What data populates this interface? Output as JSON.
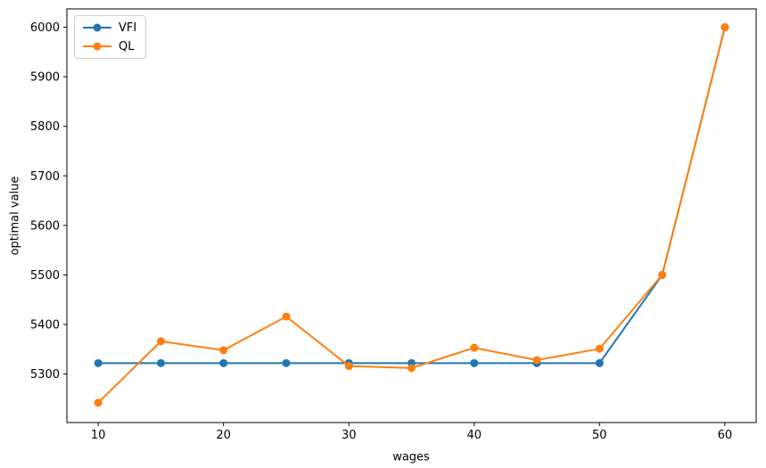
{
  "figure": {
    "background": "#ffffff",
    "spine_color": "#000000",
    "tick_color": "#000000"
  },
  "chart_data": {
    "type": "line",
    "title": "",
    "xlabel": "wages",
    "ylabel": "optimal value",
    "x": [
      10,
      15,
      20,
      25,
      30,
      35,
      40,
      45,
      50,
      55,
      60
    ],
    "series": [
      {
        "name": "VFI",
        "color": "#1f77b4",
        "values": [
          5322,
          5322,
          5322,
          5322,
          5322,
          5322,
          5322,
          5322,
          5322,
          5500,
          6000
        ]
      },
      {
        "name": "QL",
        "color": "#ff7f0e",
        "values": [
          5242,
          5366,
          5348,
          5416,
          5316,
          5312,
          5353,
          5328,
          5351,
          5500,
          6000
        ]
      }
    ],
    "xlim": [
      7.5,
      62.5
    ],
    "ylim": [
      5202,
      6037
    ],
    "xticks": [
      10,
      20,
      30,
      40,
      50,
      60
    ],
    "yticks": [
      5300,
      5400,
      5500,
      5600,
      5700,
      5800,
      5900,
      6000
    ],
    "grid": false,
    "legend_position": "upper-left",
    "marker": "circle",
    "marker_radius": 4.5,
    "line_width": 2
  }
}
